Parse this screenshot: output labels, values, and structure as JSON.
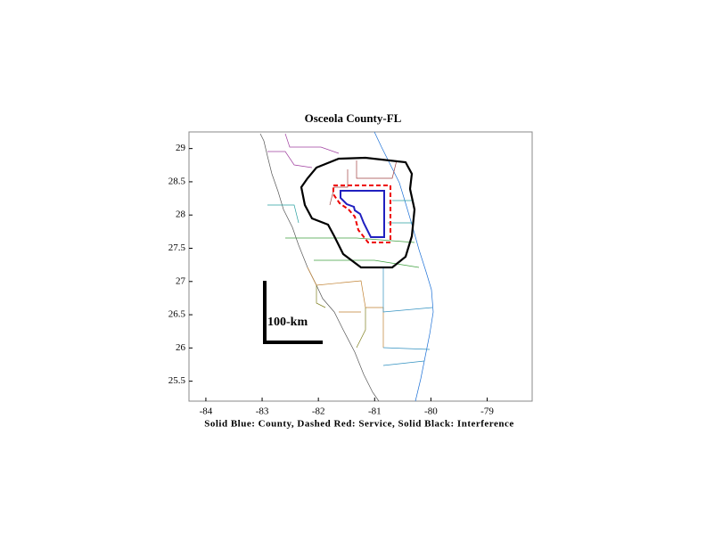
{
  "chart_data": {
    "type": "map",
    "title": "Osceola County-FL",
    "xlabel": "Solid Blue: County, Dashed Red: Service, Solid Black: Interference",
    "xlim": [
      -84.3,
      -78.2
    ],
    "ylim": [
      25.2,
      29.25
    ],
    "xticks": [
      -84,
      -83,
      -82,
      -81,
      -80,
      -79
    ],
    "yticks": [
      25.5,
      26,
      26.5,
      27,
      27.5,
      28,
      28.5,
      29
    ],
    "scale_label": "100-km"
  }
}
